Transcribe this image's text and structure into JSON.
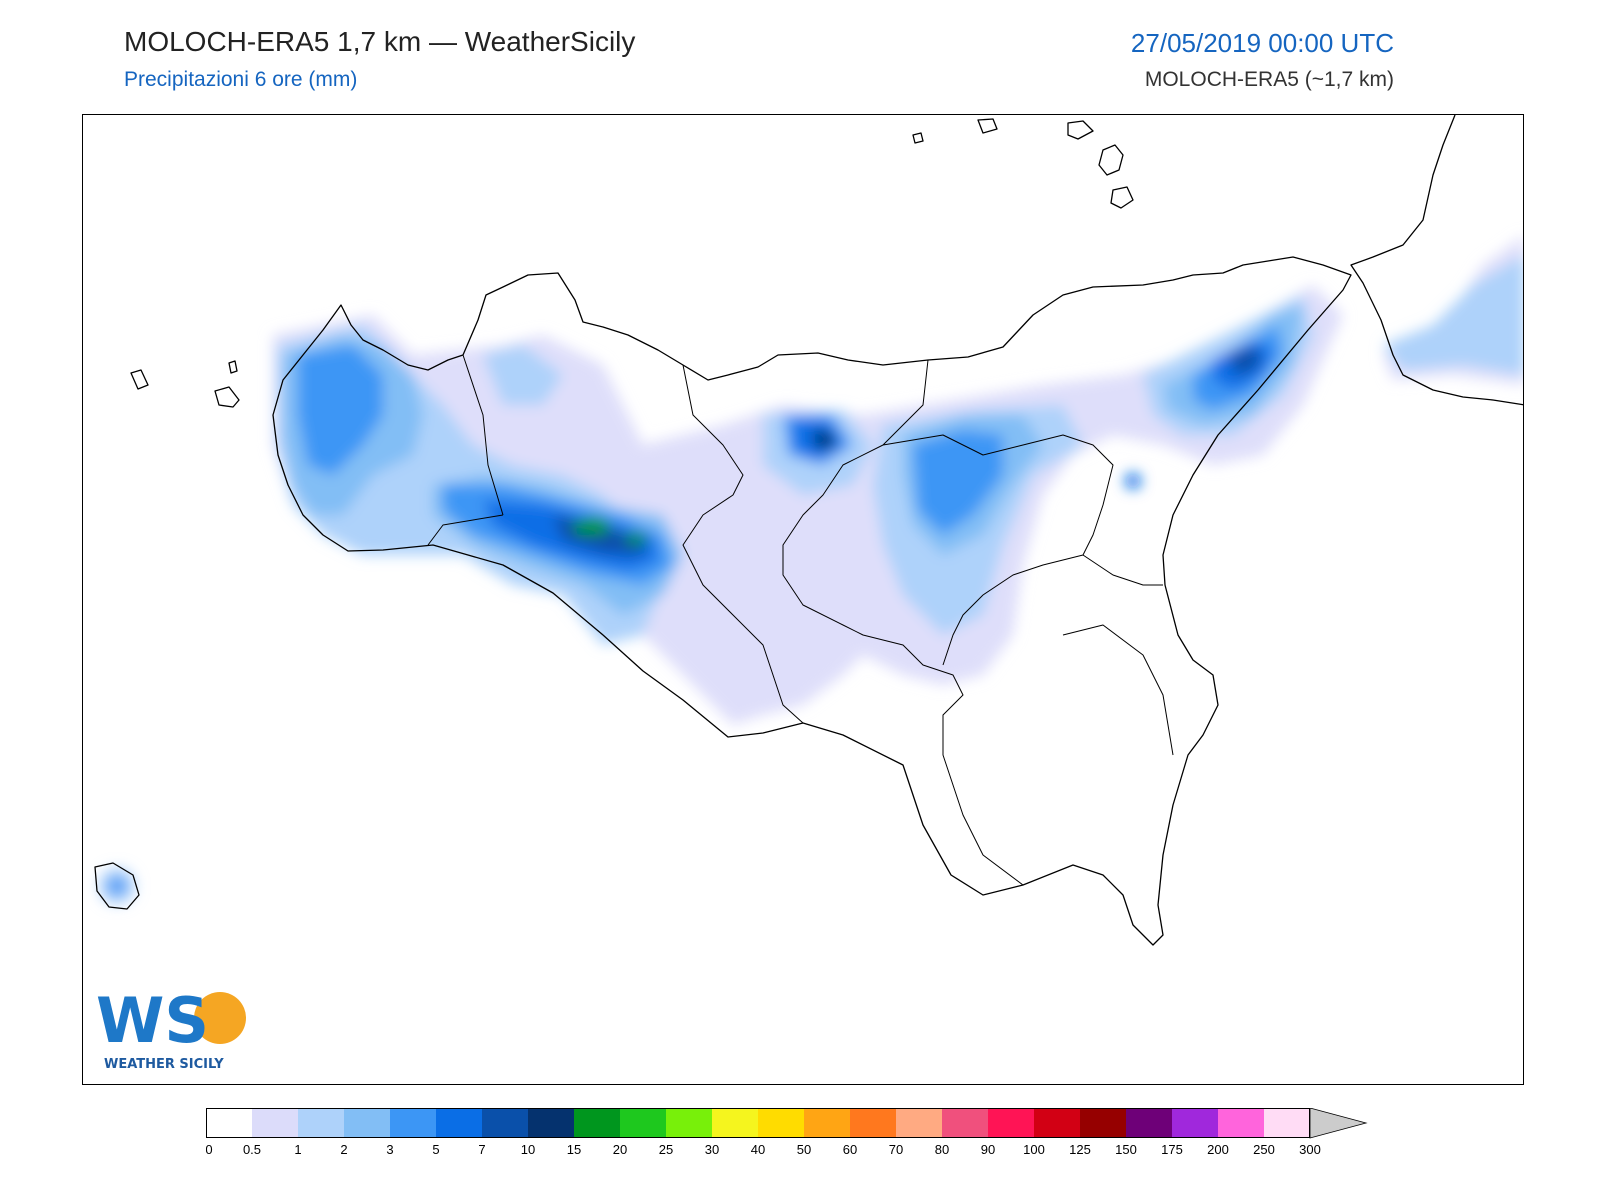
{
  "header": {
    "title": "MOLOCH-ERA5 1,7 km — WeatherSicily",
    "subtitle": "Precipitazioni 6 ore (mm)",
    "datetime": "27/05/2019 00:00 UTC",
    "model": "MOLOCH-ERA5 (~1,7 km)"
  },
  "colors": {
    "title_blue": "#1565c0",
    "coast": "#000000"
  },
  "logo": {
    "letters": "WS",
    "text": "WEATHER SICILY"
  },
  "legend": {
    "ticks": [
      "0",
      "0.5",
      "1",
      "2",
      "3",
      "5",
      "7",
      "10",
      "15",
      "20",
      "25",
      "30",
      "40",
      "50",
      "60",
      "70",
      "80",
      "90",
      "100",
      "125",
      "150",
      "175",
      "200",
      "250",
      "300"
    ],
    "colors": [
      "#ffffff",
      "#dcdcfa",
      "#aed2fa",
      "#82bef5",
      "#3c96f5",
      "#0a6ee6",
      "#0a50aa",
      "#05326e",
      "#00961e",
      "#1ec81e",
      "#78f00a",
      "#f5f51e",
      "#ffdc00",
      "#ffa514",
      "#ff781e",
      "#ffaa82",
      "#f0507d",
      "#ff1455",
      "#d20014",
      "#960000",
      "#6e0078",
      "#a028dc",
      "#ff64dc",
      "#ffdcf5"
    ],
    "overflow_color": "#cccccc"
  }
}
